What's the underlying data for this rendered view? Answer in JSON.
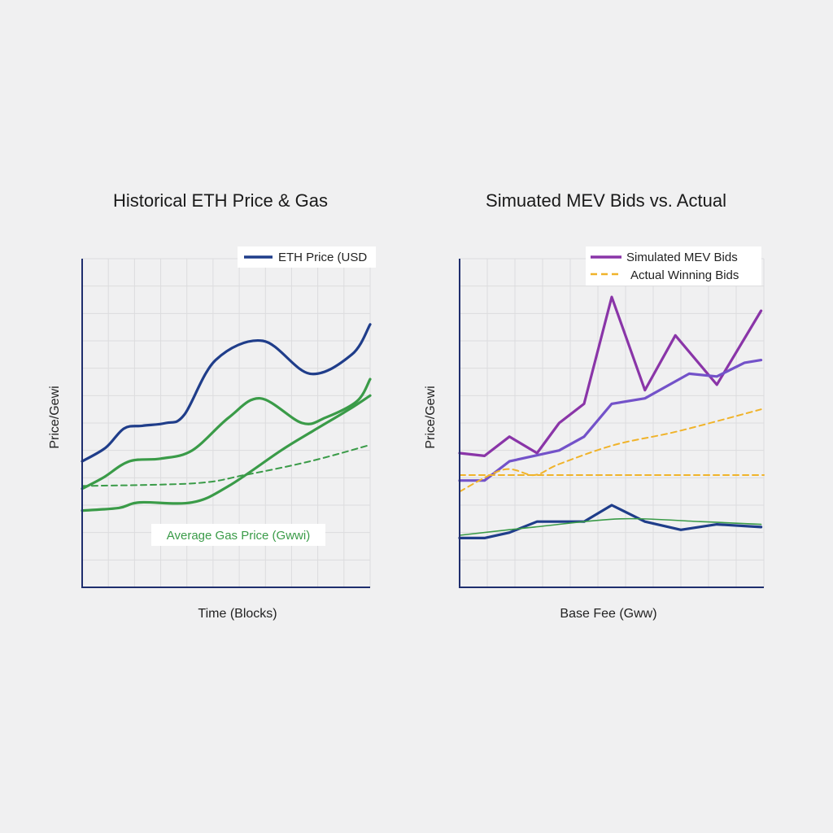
{
  "chart_data": [
    {
      "type": "line",
      "title": "Historical ETH Price & Gas",
      "xlabel": "Time (Blocks)",
      "ylabel": "Price/Gewi",
      "grid": true,
      "ylim": [
        0,
        12
      ],
      "xlim": [
        0,
        11
      ],
      "legend": {
        "position": "top-right",
        "entries": [
          "ETH Price (USD"
        ]
      },
      "annotation": {
        "text": "Average Gas Price (Gwwi)",
        "color": "#3a9b48"
      },
      "series": [
        {
          "name": "ETH Price (USD",
          "color": "#1f3d8a",
          "style": "solid",
          "points": [
            [
              0,
              4.6
            ],
            [
              0.9,
              5.1
            ],
            [
              1.6,
              5.8
            ],
            [
              2.3,
              5.9
            ],
            [
              3.2,
              6.0
            ],
            [
              3.9,
              6.3
            ],
            [
              5.1,
              8.3
            ],
            [
              6.9,
              9.0
            ],
            [
              8.7,
              7.8
            ],
            [
              10.3,
              8.5
            ],
            [
              11,
              9.6
            ]
          ]
        },
        {
          "color": "#3a9b48",
          "style": "solid",
          "points": [
            [
              0,
              3.6
            ],
            [
              0.8,
              4.0
            ],
            [
              1.8,
              4.6
            ],
            [
              3.0,
              4.7
            ],
            [
              4.2,
              5.0
            ],
            [
              5.6,
              6.2
            ],
            [
              6.8,
              6.9
            ],
            [
              8.4,
              6.0
            ],
            [
              9.3,
              6.2
            ],
            [
              10.5,
              6.8
            ],
            [
              11,
              7.6
            ]
          ]
        },
        {
          "color": "#3a9b48",
          "style": "solid",
          "points": [
            [
              0,
              2.8
            ],
            [
              1.4,
              2.9
            ],
            [
              2.2,
              3.1
            ],
            [
              4.2,
              3.1
            ],
            [
              5.6,
              3.7
            ],
            [
              7.6,
              5.0
            ],
            [
              8.8,
              5.7
            ],
            [
              10.2,
              6.5
            ],
            [
              11,
              7.0
            ]
          ]
        },
        {
          "color": "#3a9b48",
          "style": "dashed",
          "points": [
            [
              0,
              3.7
            ],
            [
              4.3,
              3.8
            ],
            [
              6.2,
              4.1
            ],
            [
              8.7,
              4.6
            ],
            [
              11,
              5.2
            ]
          ]
        }
      ]
    },
    {
      "type": "line",
      "title": "Simuated MEV Bids vs. Actual",
      "xlabel": "Base Fee (Gww)",
      "ylabel": "Price/Gewi",
      "grid": true,
      "ylim": [
        0,
        12
      ],
      "xlim": [
        0,
        11
      ],
      "legend": {
        "position": "top-right",
        "entries": [
          "Simulated MEV Bids",
          "Actual Winning Bids"
        ]
      },
      "series": [
        {
          "name": "Simulated MEV Bids",
          "color": "#8a35a8",
          "style": "solid",
          "points": [
            [
              0,
              4.9
            ],
            [
              0.9,
              4.8
            ],
            [
              1.8,
              5.5
            ],
            [
              2.8,
              4.9
            ],
            [
              3.6,
              6.0
            ],
            [
              4.5,
              6.7
            ],
            [
              5.5,
              10.6
            ],
            [
              6.7,
              7.2
            ],
            [
              7.8,
              9.2
            ],
            [
              9.3,
              7.4
            ],
            [
              10.9,
              10.1
            ]
          ]
        },
        {
          "color": "#7352c9",
          "style": "solid",
          "points": [
            [
              0,
              3.9
            ],
            [
              0.9,
              3.9
            ],
            [
              1.8,
              4.6
            ],
            [
              3.6,
              5.0
            ],
            [
              4.5,
              5.5
            ],
            [
              5.5,
              6.7
            ],
            [
              6.7,
              6.9
            ],
            [
              8.3,
              7.8
            ],
            [
              9.3,
              7.7
            ],
            [
              10.3,
              8.2
            ],
            [
              10.9,
              8.3
            ]
          ]
        },
        {
          "name": "Actual Winning Bids",
          "color": "#f0b32a",
          "style": "dashed",
          "points": [
            [
              0,
              3.5
            ],
            [
              1.6,
              4.3
            ],
            [
              2.7,
              4.1
            ],
            [
              3.6,
              4.5
            ],
            [
              5.6,
              5.2
            ],
            [
              7.9,
              5.7
            ],
            [
              10.9,
              6.5
            ]
          ]
        },
        {
          "color": "#f0b32a",
          "style": "dashed",
          "points": [
            [
              0,
              4.1
            ],
            [
              11,
              4.1
            ]
          ]
        },
        {
          "color": "#1f3d8a",
          "style": "solid",
          "points": [
            [
              0,
              1.8
            ],
            [
              0.9,
              1.8
            ],
            [
              1.8,
              2.0
            ],
            [
              2.8,
              2.4
            ],
            [
              4.5,
              2.4
            ],
            [
              5.5,
              3.0
            ],
            [
              6.7,
              2.4
            ],
            [
              8.0,
              2.1
            ],
            [
              9.3,
              2.3
            ],
            [
              10.9,
              2.2
            ]
          ]
        },
        {
          "color": "#3a9b48",
          "style": "thin",
          "points": [
            [
              0,
              1.9
            ],
            [
              2.7,
              2.2
            ],
            [
              5.8,
              2.5
            ],
            [
              8.7,
              2.4
            ],
            [
              10.9,
              2.3
            ]
          ]
        }
      ]
    }
  ]
}
